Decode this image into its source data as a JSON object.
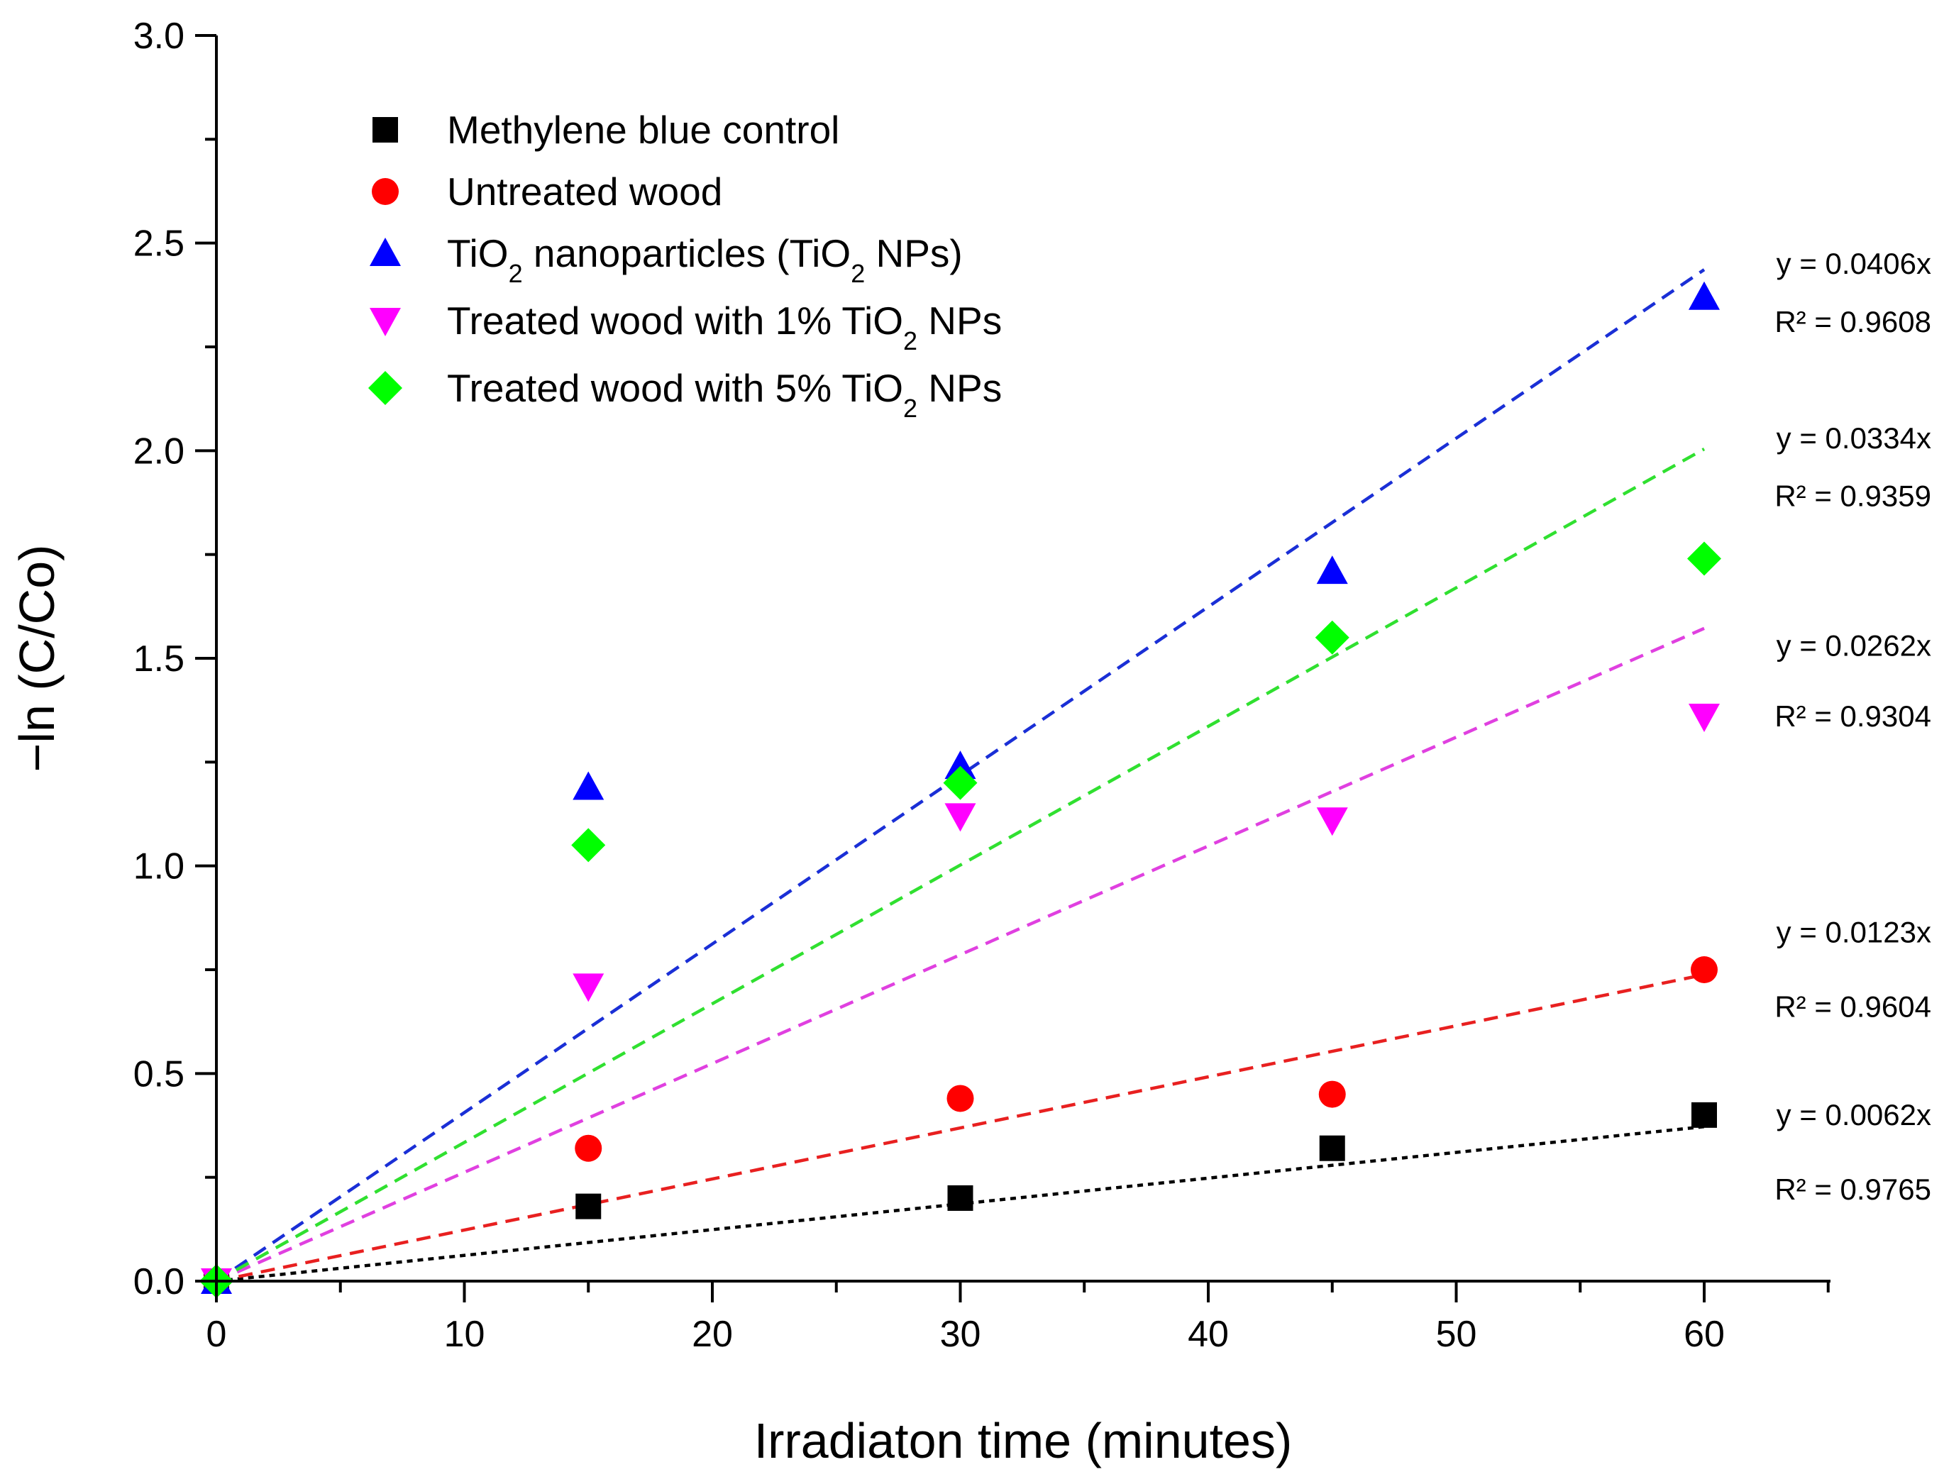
{
  "chart_data": {
    "type": "scatter",
    "title": "",
    "xlabel": "Irradiaton time (minutes)",
    "ylabel": "−ln (C/Co)",
    "xlim": [
      0,
      65
    ],
    "ylim": [
      0,
      3.0
    ],
    "x_major_ticks": [
      0,
      10,
      20,
      30,
      40,
      50,
      60
    ],
    "x_tick_labels": [
      "0",
      "10",
      "20",
      "30",
      "40",
      "50",
      "60"
    ],
    "y_major_ticks": [
      0,
      0.5,
      1.0,
      1.5,
      2.0,
      2.5,
      3.0
    ],
    "y_tick_labels": [
      "0.0",
      "0.5",
      "1.0",
      "1.5",
      "2.0",
      "2.5",
      "3.0"
    ],
    "grid": false,
    "legend_position": "top-left",
    "series": [
      {
        "name": "Methylene blue control",
        "name_parts": [
          "Methylene blue control"
        ],
        "marker": "square",
        "color": "#000000",
        "x": [
          0,
          15,
          30,
          45,
          60
        ],
        "y": [
          0.0,
          0.18,
          0.2,
          0.32,
          0.4
        ],
        "fit": {
          "slope": 0.0062,
          "x_range": [
            0,
            60
          ],
          "line_style": "dotted",
          "equation": "y = 0.0062x",
          "r2": "R² = 0.9765"
        }
      },
      {
        "name": "Untreated wood",
        "name_parts": [
          "Untreated wood"
        ],
        "marker": "circle",
        "color": "#ff0000",
        "x": [
          0,
          15,
          30,
          45,
          60
        ],
        "y": [
          0.0,
          0.32,
          0.44,
          0.45,
          0.75
        ],
        "fit": {
          "slope": 0.0123,
          "x_range": [
            0,
            60
          ],
          "line_style": "dashed",
          "equation": "y = 0.0123x",
          "r2": "R² = 0.9604"
        }
      },
      {
        "name": "TiO2 nanoparticles (TiO2 NPs)",
        "name_parts": [
          "TiO",
          "2",
          " nanoparticles (TiO",
          "2",
          " NPs)"
        ],
        "marker": "triangle-up",
        "color": "#0000ff",
        "x": [
          0,
          15,
          30,
          45,
          60
        ],
        "y": [
          0.0,
          1.19,
          1.24,
          1.71,
          2.37
        ],
        "fit": {
          "slope": 0.0406,
          "x_range": [
            0,
            60
          ],
          "line_style": "dashed",
          "equation": "y = 0.0406x",
          "r2": "R² = 0.9608"
        }
      },
      {
        "name": "Treated wood with 1% TiO2 NPs",
        "name_parts": [
          "Treated wood with 1% TiO",
          "2",
          " NPs"
        ],
        "marker": "triangle-down",
        "color": "#ff00ff",
        "x": [
          0,
          15,
          30,
          45,
          60
        ],
        "y": [
          0.0,
          0.71,
          1.12,
          1.11,
          1.36
        ],
        "fit": {
          "slope": 0.0262,
          "x_range": [
            0,
            60
          ],
          "line_style": "dashed",
          "equation": "y = 0.0262x",
          "r2": "R² = 0.9304"
        }
      },
      {
        "name": "Treated wood with 5% TiO2 NPs",
        "name_parts": [
          "Treated wood with 5% TiO",
          "2",
          " NPs"
        ],
        "marker": "diamond",
        "color": "#00ff00",
        "x": [
          0,
          15,
          30,
          45,
          60
        ],
        "y": [
          0.0,
          1.05,
          1.2,
          1.55,
          1.74
        ],
        "fit": {
          "slope": 0.0334,
          "x_range": [
            0,
            60
          ],
          "line_style": "dashed",
          "equation": "y = 0.0334x",
          "r2": "R² = 0.9359"
        }
      }
    ],
    "fit_line_colors": {
      "Methylene blue control": "#000000",
      "Untreated wood": "#e82020",
      "TiO2 nanoparticles (TiO2 NPs)": "#1a2fd6",
      "Treated wood with 1% TiO2 NPs": "#e040e0",
      "Treated wood with 5% TiO2 NPs": "#30e030"
    },
    "annotations": [
      {
        "series": "TiO2 nanoparticles (TiO2 NPs)",
        "lines": [
          "y = 0.0406x",
          "R² = 0.9608"
        ],
        "anchor_y": [
          2.45,
          2.31
        ]
      },
      {
        "series": "Treated wood with 5% TiO2 NPs",
        "lines": [
          "y = 0.0334x",
          "R² = 0.9359"
        ],
        "anchor_y": [
          2.03,
          1.89
        ]
      },
      {
        "series": "Treated wood with 1% TiO2 NPs",
        "lines": [
          "y = 0.0262x",
          "R² = 0.9304"
        ],
        "anchor_y": [
          1.53,
          1.36
        ]
      },
      {
        "series": "Untreated wood",
        "lines": [
          "y = 0.0123x",
          "R² = 0.9604"
        ],
        "anchor_y": [
          0.84,
          0.66
        ]
      },
      {
        "series": "Methylene blue control",
        "lines": [
          "y = 0.0062x",
          "R² = 0.9765"
        ],
        "anchor_y": [
          0.4,
          0.22
        ]
      }
    ]
  }
}
